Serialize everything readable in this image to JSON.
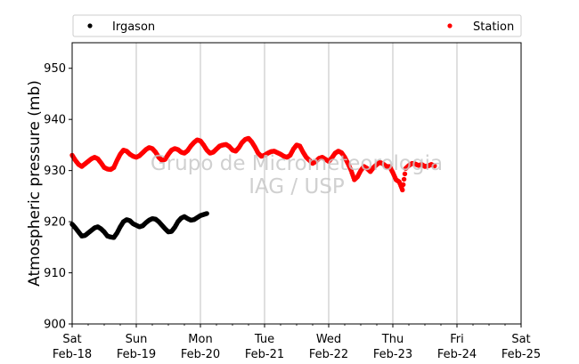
{
  "chart_data": {
    "type": "scatter",
    "ylabel": "Atmospheric pressure (mb)",
    "ylim": [
      900,
      955
    ],
    "yticks": [
      900,
      910,
      920,
      930,
      940,
      950
    ],
    "xlim_days": [
      0,
      7
    ],
    "xticks": [
      {
        "day": 0,
        "line1": "Sat",
        "line2": "Feb-18"
      },
      {
        "day": 1,
        "line1": "Sun",
        "line2": "Feb-19"
      },
      {
        "day": 2,
        "line1": "Mon",
        "line2": "Feb-20"
      },
      {
        "day": 3,
        "line1": "Tue",
        "line2": "Feb-21"
      },
      {
        "day": 4,
        "line1": "Wed",
        "line2": "Feb-22"
      },
      {
        "day": 5,
        "line1": "Thu",
        "line2": "Feb-23"
      },
      {
        "day": 6,
        "line1": "Fri",
        "line2": "Feb-24"
      },
      {
        "day": 7,
        "line1": "Sat",
        "line2": "Feb-25"
      }
    ],
    "grid": "vertical",
    "legend_position": "top",
    "watermark": [
      "Grupo de Micrometeorologia",
      "IAG / USP"
    ],
    "series": [
      {
        "name": "Irgason",
        "color": "#000000",
        "points": [
          [
            0.0,
            919.5
          ],
          [
            0.05,
            918.8
          ],
          [
            0.1,
            918.0
          ],
          [
            0.15,
            917.2
          ],
          [
            0.2,
            917.3
          ],
          [
            0.25,
            917.8
          ],
          [
            0.3,
            918.3
          ],
          [
            0.35,
            918.8
          ],
          [
            0.4,
            919.0
          ],
          [
            0.45,
            918.6
          ],
          [
            0.5,
            918.0
          ],
          [
            0.55,
            917.2
          ],
          [
            0.6,
            917.0
          ],
          [
            0.65,
            916.9
          ],
          [
            0.7,
            917.8
          ],
          [
            0.75,
            919.0
          ],
          [
            0.8,
            920.0
          ],
          [
            0.85,
            920.4
          ],
          [
            0.9,
            920.2
          ],
          [
            0.95,
            919.6
          ],
          [
            1.0,
            919.3
          ],
          [
            1.05,
            919.0
          ],
          [
            1.1,
            919.2
          ],
          [
            1.15,
            919.8
          ],
          [
            1.2,
            920.3
          ],
          [
            1.25,
            920.6
          ],
          [
            1.3,
            920.5
          ],
          [
            1.35,
            920.0
          ],
          [
            1.4,
            919.3
          ],
          [
            1.45,
            918.6
          ],
          [
            1.5,
            918.0
          ],
          [
            1.55,
            918.1
          ],
          [
            1.6,
            918.9
          ],
          [
            1.65,
            920.0
          ],
          [
            1.7,
            920.7
          ],
          [
            1.75,
            921.0
          ],
          [
            1.8,
            920.6
          ],
          [
            1.85,
            920.3
          ],
          [
            1.9,
            920.4
          ],
          [
            1.95,
            920.8
          ],
          [
            2.0,
            921.2
          ],
          [
            2.05,
            921.4
          ],
          [
            2.1,
            921.6
          ]
        ]
      },
      {
        "name": "Station",
        "color": "#ff0000",
        "points": [
          [
            0.0,
            933.0
          ],
          [
            0.05,
            932.0
          ],
          [
            0.1,
            931.2
          ],
          [
            0.15,
            930.8
          ],
          [
            0.2,
            931.3
          ],
          [
            0.25,
            931.8
          ],
          [
            0.3,
            932.3
          ],
          [
            0.35,
            932.6
          ],
          [
            0.4,
            932.3
          ],
          [
            0.45,
            931.5
          ],
          [
            0.5,
            930.6
          ],
          [
            0.55,
            930.3
          ],
          [
            0.6,
            930.2
          ],
          [
            0.65,
            930.6
          ],
          [
            0.7,
            932.0
          ],
          [
            0.75,
            933.2
          ],
          [
            0.8,
            934.0
          ],
          [
            0.85,
            933.8
          ],
          [
            0.9,
            933.2
          ],
          [
            0.95,
            932.8
          ],
          [
            1.0,
            932.6
          ],
          [
            1.05,
            932.9
          ],
          [
            1.1,
            933.5
          ],
          [
            1.15,
            934.1
          ],
          [
            1.2,
            934.5
          ],
          [
            1.25,
            934.3
          ],
          [
            1.3,
            933.6
          ],
          [
            1.35,
            932.6
          ],
          [
            1.4,
            932.0
          ],
          [
            1.45,
            932.2
          ],
          [
            1.5,
            933.2
          ],
          [
            1.55,
            934.0
          ],
          [
            1.6,
            934.3
          ],
          [
            1.65,
            934.1
          ],
          [
            1.7,
            933.6
          ],
          [
            1.75,
            933.4
          ],
          [
            1.8,
            933.9
          ],
          [
            1.85,
            934.8
          ],
          [
            1.9,
            935.5
          ],
          [
            1.95,
            936.0
          ],
          [
            2.0,
            935.8
          ],
          [
            2.05,
            935.0
          ],
          [
            2.1,
            934.0
          ],
          [
            2.15,
            933.4
          ],
          [
            2.2,
            933.6
          ],
          [
            2.25,
            934.2
          ],
          [
            2.3,
            934.8
          ],
          [
            2.35,
            935.0
          ],
          [
            2.4,
            935.1
          ],
          [
            2.45,
            934.7
          ],
          [
            2.5,
            934.0
          ],
          [
            2.55,
            933.8
          ],
          [
            2.6,
            934.5
          ],
          [
            2.65,
            935.5
          ],
          [
            2.7,
            936.1
          ],
          [
            2.75,
            936.3
          ],
          [
            2.8,
            935.6
          ],
          [
            2.85,
            934.6
          ],
          [
            2.9,
            933.4
          ],
          [
            2.95,
            932.8
          ],
          [
            3.0,
            933.0
          ],
          [
            3.05,
            933.4
          ],
          [
            3.1,
            933.7
          ],
          [
            3.15,
            933.8
          ],
          [
            3.2,
            933.5
          ],
          [
            3.25,
            933.2
          ],
          [
            3.3,
            932.8
          ],
          [
            3.35,
            932.6
          ],
          [
            3.4,
            933.0
          ],
          [
            3.45,
            934.2
          ],
          [
            3.5,
            935.0
          ],
          [
            3.55,
            934.8
          ],
          [
            3.6,
            933.6
          ],
          [
            3.65,
            932.6
          ],
          [
            3.7,
            932.0
          ],
          [
            3.75,
            931.4
          ],
          [
            3.8,
            931.8
          ],
          [
            3.85,
            932.4
          ],
          [
            3.9,
            932.6
          ],
          [
            3.95,
            932.2
          ],
          [
            4.0,
            931.8
          ],
          [
            4.05,
            932.5
          ],
          [
            4.1,
            933.4
          ],
          [
            4.15,
            933.8
          ],
          [
            4.2,
            933.5
          ],
          [
            4.25,
            932.6
          ],
          [
            4.3,
            931.4
          ],
          [
            4.35,
            930.0
          ],
          [
            4.4,
            928.2
          ],
          [
            4.45,
            928.8
          ],
          [
            4.5,
            930.0
          ],
          [
            4.55,
            930.8
          ],
          [
            4.6,
            930.4
          ],
          [
            4.65,
            929.8
          ],
          [
            4.7,
            930.6
          ],
          [
            4.75,
            931.2
          ],
          [
            4.8,
            931.6
          ],
          [
            4.85,
            931.3
          ],
          [
            4.9,
            930.8
          ],
          [
            4.95,
            930.8
          ],
          [
            5.0,
            929.6
          ],
          [
            5.05,
            928.2
          ],
          [
            5.1,
            927.8
          ],
          [
            5.15,
            926.2
          ],
          [
            5.2,
            930.4
          ],
          [
            5.25,
            931.0
          ],
          [
            5.3,
            931.4
          ],
          [
            5.35,
            931.3
          ],
          [
            5.4,
            931.0
          ],
          [
            5.45,
            931.2
          ],
          [
            5.5,
            930.8
          ],
          [
            5.55,
            930.9
          ],
          [
            5.6,
            931.2
          ],
          [
            5.65,
            930.9
          ]
        ]
      }
    ]
  }
}
